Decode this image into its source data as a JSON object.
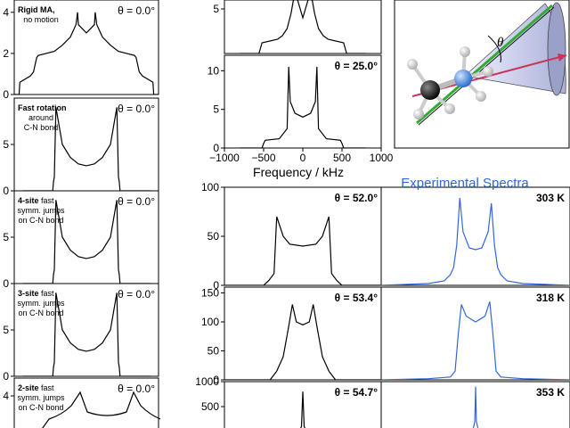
{
  "colors": {
    "simulated": "#000000",
    "experimental": "#3366dd",
    "frame": "#000000"
  },
  "left_column": {
    "panels": [
      {
        "line1_bold": "Rigid MA,",
        "line1_rest": "",
        "line2": "no motion",
        "line3": "",
        "theta": "θ = 0.0°",
        "yticks": [
          "0",
          "2",
          "4"
        ]
      },
      {
        "line1_bold": "Fast rotation",
        "line1_rest": "",
        "line2": "around",
        "line3": "C-N bond",
        "theta": "θ = 0.0°",
        "yticks": [
          "0",
          "5"
        ]
      },
      {
        "line1_bold": "4-site",
        "line1_rest": " fast",
        "line2": "symm. jumps",
        "line3": "on C-N bond",
        "theta": "θ = 0.0°",
        "yticks": [
          "0",
          "5"
        ]
      },
      {
        "line1_bold": "3-site",
        "line1_rest": " fast",
        "line2": "symm. jumps",
        "line3": "on C-N bond",
        "theta": "θ = 0.0°",
        "yticks": [
          "0",
          "5"
        ]
      },
      {
        "line1_bold": "2-site",
        "line1_rest": " fast",
        "line2": "symm. jumps",
        "line3": "on C-N bond",
        "theta": "θ = 0.0°",
        "yticks": [
          "4"
        ]
      }
    ]
  },
  "middle_top": {
    "panels": [
      {
        "theta": "",
        "yticks": [
          "5"
        ]
      },
      {
        "theta": "θ = 25.0°",
        "yticks": [
          "0",
          "5",
          "10"
        ]
      }
    ],
    "xticks": [
      "−1000",
      "−500",
      "0",
      "500",
      "1000"
    ],
    "xlabel": "Frequency / kHz"
  },
  "middle_bottom": {
    "panels": [
      {
        "theta": "θ = 52.0°",
        "yticks": [
          "0",
          "50",
          "100"
        ]
      },
      {
        "theta": "θ = 53.4°",
        "yticks": [
          "0",
          "50",
          "100",
          "150"
        ]
      },
      {
        "theta": "θ = 54.7°",
        "yticks": [
          "500",
          "1000"
        ]
      }
    ]
  },
  "experimental": {
    "title": "Experimental Spectra",
    "panels": [
      {
        "temp": "303 K"
      },
      {
        "temp": "318 K"
      },
      {
        "temp": "353 K"
      }
    ]
  },
  "inset": {
    "angle_label": "θ"
  },
  "chart_data": [
    {
      "type": "line",
      "panel": "left-1",
      "title": "Rigid MA, no motion",
      "description_theta_deg": 0.0,
      "ylim": [
        0,
        4.6
      ],
      "series": [
        {
          "x": [
            -900,
            -840,
            -830,
            -700,
            -660,
            -620,
            -600,
            -400,
            -300,
            -200,
            -130,
            -110,
            -100,
            0,
            100,
            110,
            130,
            200,
            300,
            400,
            600,
            620,
            660,
            700,
            830,
            840,
            900
          ],
          "values": [
            0,
            0,
            0.6,
            0.9,
            1.1,
            1.8,
            1.9,
            2.1,
            2.4,
            2.8,
            3.4,
            4.0,
            3.4,
            3.0,
            3.4,
            4.0,
            3.4,
            2.8,
            2.4,
            2.1,
            1.9,
            1.8,
            1.1,
            0.9,
            0.6,
            0,
            0
          ]
        }
      ]
    },
    {
      "type": "line",
      "panel": "left-2",
      "title": "Fast rotation around C-N bond",
      "ylim": [
        0,
        10
      ],
      "series": [
        {
          "x": [
            -800,
            -420,
            -410,
            -400,
            -380,
            -300,
            -200,
            -100,
            0,
            100,
            200,
            300,
            380,
            400,
            410,
            420,
            800
          ],
          "values": [
            0,
            0,
            1.0,
            1.5,
            9.0,
            5.0,
            3.6,
            2.9,
            2.7,
            2.9,
            3.6,
            5.0,
            9.0,
            1.5,
            1.0,
            0,
            0
          ]
        }
      ]
    },
    {
      "type": "line",
      "panel": "left-3",
      "title": "4-site fast symm. jumps on C-N bond",
      "ylim": [
        0,
        10
      ],
      "series": [
        {
          "x": [
            -800,
            -420,
            -410,
            -400,
            -380,
            -300,
            -200,
            -100,
            0,
            100,
            200,
            300,
            380,
            400,
            410,
            420,
            800
          ],
          "values": [
            0,
            0,
            1.0,
            1.5,
            9.0,
            5.0,
            3.6,
            2.9,
            2.7,
            2.9,
            3.6,
            5.0,
            9.0,
            1.5,
            1.0,
            0,
            0
          ]
        }
      ]
    },
    {
      "type": "line",
      "panel": "left-4",
      "title": "3-site fast symm. jumps on C-N bond",
      "ylim": [
        0,
        10
      ],
      "series": [
        {
          "x": [
            -800,
            -420,
            -410,
            -400,
            -380,
            -300,
            -200,
            -100,
            0,
            100,
            200,
            300,
            380,
            400,
            410,
            420,
            800
          ],
          "values": [
            0,
            0,
            1.0,
            1.5,
            9.0,
            5.0,
            3.6,
            2.9,
            2.7,
            2.9,
            3.6,
            5.0,
            9.0,
            1.5,
            1.0,
            0,
            0
          ]
        }
      ]
    },
    {
      "type": "line",
      "panel": "middle-1",
      "ylim": [
        0,
        6
      ],
      "series": [
        {
          "x": [
            -800,
            -560,
            -540,
            -520,
            -320,
            -260,
            -200,
            -150,
            -100,
            0,
            100,
            150,
            200,
            260,
            320,
            520,
            540,
            560,
            800
          ],
          "values": [
            0,
            0,
            0.6,
            1.2,
            1.6,
            2.0,
            2.8,
            4.5,
            7.0,
            4.0,
            7.0,
            4.5,
            2.8,
            2.0,
            1.6,
            1.2,
            0.6,
            0,
            0
          ]
        }
      ]
    },
    {
      "type": "line",
      "panel": "middle-2",
      "title": "θ = 25.0°",
      "xlabel": "Frequency / kHz",
      "xlim": [
        -1000,
        1000
      ],
      "ylim": [
        0,
        12
      ],
      "series": [
        {
          "x": [
            -800,
            -520,
            -500,
            -480,
            -300,
            -200,
            -180,
            -160,
            -100,
            0,
            100,
            160,
            180,
            200,
            300,
            480,
            500,
            520,
            800
          ],
          "values": [
            0,
            0,
            0.6,
            1.0,
            1.2,
            2.5,
            10.5,
            6.0,
            4.5,
            4.0,
            4.5,
            6.0,
            10.5,
            2.5,
            1.2,
            1.0,
            0.6,
            0,
            0
          ]
        }
      ]
    },
    {
      "type": "line",
      "panel": "middle-3",
      "title": "θ = 52.0°",
      "ylim": [
        0,
        100
      ],
      "series": [
        {
          "x": [
            -600,
            -300,
            -260,
            -220,
            -200,
            -150,
            -100,
            0,
            100,
            150,
            200,
            220,
            260,
            300,
            600
          ],
          "values": [
            0,
            0,
            5,
            12,
            70,
            50,
            42,
            40,
            42,
            50,
            70,
            12,
            5,
            0,
            0
          ]
        }
      ]
    },
    {
      "type": "line",
      "panel": "middle-4",
      "title": "θ = 53.4°",
      "ylim": [
        0,
        160
      ],
      "series": [
        {
          "x": [
            -600,
            -250,
            -200,
            -150,
            -110,
            -80,
            -50,
            0,
            50,
            80,
            110,
            150,
            200,
            250,
            600
          ],
          "values": [
            0,
            0,
            15,
            40,
            90,
            130,
            100,
            95,
            100,
            130,
            90,
            40,
            15,
            0,
            0
          ]
        }
      ]
    },
    {
      "type": "line",
      "panel": "middle-5",
      "title": "θ = 54.7°",
      "ylim": [
        0,
        1000
      ],
      "series": [
        {
          "x": [
            -600,
            -30,
            -10,
            0,
            10,
            30,
            600
          ],
          "values": [
            0,
            0,
            100,
            800,
            100,
            0,
            0
          ]
        }
      ]
    },
    {
      "type": "line",
      "panel": "exp-1",
      "title": "Experimental Spectra",
      "series": [
        {
          "name": "303 K",
          "x": [
            -600,
            -300,
            -200,
            -160,
            -140,
            -120,
            -100,
            -80,
            -40,
            0,
            40,
            80,
            100,
            120,
            140,
            160,
            200,
            300,
            600
          ],
          "values": [
            0,
            2,
            5,
            12,
            20,
            45,
            98,
            60,
            42,
            40,
            42,
            60,
            92,
            45,
            20,
            12,
            5,
            2,
            0
          ]
        }
      ]
    },
    {
      "type": "line",
      "panel": "exp-2",
      "series": [
        {
          "name": "318 K",
          "x": [
            -600,
            -300,
            -160,
            -130,
            -110,
            -90,
            -60,
            -30,
            0,
            30,
            60,
            90,
            110,
            130,
            160,
            300,
            600
          ],
          "values": [
            0,
            2,
            5,
            15,
            80,
            130,
            110,
            105,
            100,
            105,
            110,
            135,
            80,
            15,
            5,
            2,
            0
          ]
        }
      ]
    },
    {
      "type": "line",
      "panel": "exp-3",
      "series": [
        {
          "name": "353 K",
          "x": [
            -600,
            -20,
            -5,
            0,
            5,
            20,
            600
          ],
          "values": [
            0,
            0,
            200,
            900,
            200,
            0,
            0
          ]
        }
      ]
    }
  ]
}
